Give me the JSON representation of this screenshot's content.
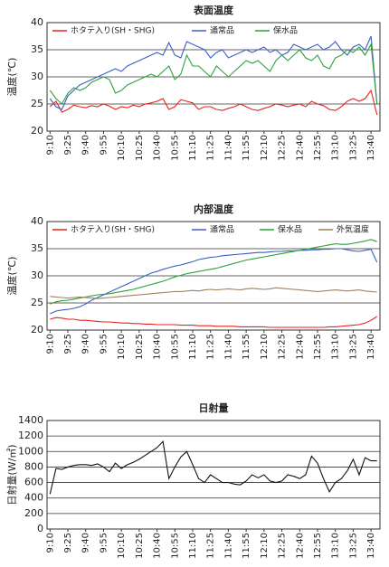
{
  "chart_data": [
    {
      "type": "line",
      "title": "表面温度",
      "ylabel": "温度(℃)",
      "ylim": [
        20,
        40
      ],
      "yticks": [
        20,
        25,
        30,
        35,
        40
      ],
      "grid": true,
      "legend": "top",
      "categories": [
        "9:10",
        null,
        null,
        "9:25",
        null,
        null,
        "9:40",
        null,
        null,
        "9:55",
        null,
        null,
        "10:10",
        null,
        null,
        "10:25",
        null,
        null,
        "10:40",
        null,
        null,
        "10:55",
        null,
        null,
        "11:10",
        null,
        null,
        "11:25",
        null,
        null,
        "11:40",
        null,
        null,
        "11:55",
        null,
        null,
        "12:10",
        null,
        null,
        "12:25",
        null,
        null,
        "12:40",
        null,
        null,
        "12:55",
        null,
        null,
        "13:10",
        null,
        null,
        "13:25",
        null,
        null,
        "13:40",
        null
      ],
      "series": [
        {
          "name": "ホタテ入り(SH・SHG)",
          "color": "#e8231e",
          "values": [
            24.5,
            25.5,
            23.5,
            24,
            24.8,
            24.5,
            24.3,
            24.7,
            24.5,
            25,
            24.6,
            24,
            24.5,
            24.3,
            24.8,
            24.5,
            25,
            25.2,
            25.5,
            26,
            24,
            24.5,
            25.8,
            25.5,
            25.2,
            24,
            24.5,
            24.5,
            24,
            23.8,
            24.2,
            24.5,
            25,
            24.5,
            24,
            23.8,
            24.2,
            24.5,
            25,
            24.8,
            24.5,
            24.8,
            25,
            24.5,
            25.5,
            25,
            24.7,
            24,
            23.8,
            24.5,
            25.5,
            26,
            25.5,
            26,
            27.5,
            23
          ]
        },
        {
          "name": "通常品",
          "color": "#3b5fc8",
          "values": [
            26,
            24.5,
            24,
            26.5,
            27.5,
            28.5,
            29,
            29.5,
            30,
            30.5,
            31,
            31.5,
            31,
            32,
            32.5,
            33,
            33.5,
            34,
            34.5,
            34,
            36.3,
            34,
            33.5,
            36.5,
            36,
            35.5,
            35,
            33.5,
            34.5,
            35,
            33.5,
            34,
            34.5,
            35,
            34.5,
            35,
            35.5,
            34.5,
            35,
            34,
            34.5,
            36,
            35.5,
            35,
            35.5,
            36,
            35,
            35.5,
            36.5,
            35,
            34,
            35.5,
            36,
            35,
            37.5,
            25
          ]
        },
        {
          "name": "保水品",
          "color": "#2aa33a",
          "values": [
            27.5,
            26,
            25,
            27,
            28,
            27.5,
            28,
            29,
            29.5,
            30,
            29.5,
            27,
            27.5,
            28.5,
            29,
            29.5,
            30,
            30.5,
            30,
            31,
            32,
            29.5,
            30.5,
            34,
            32,
            32,
            31,
            30,
            32,
            31,
            30,
            31,
            32,
            33,
            32.5,
            33,
            32,
            31,
            33,
            34,
            33,
            34,
            35,
            33.5,
            33,
            34,
            32,
            31.5,
            33.5,
            34,
            35,
            34.5,
            35.5,
            34,
            36,
            25
          ]
        }
      ]
    },
    {
      "type": "line",
      "title": "内部温度",
      "ylabel": "温度(℃)",
      "ylim": [
        20,
        40
      ],
      "yticks": [
        20,
        25,
        30,
        35,
        40
      ],
      "grid": true,
      "legend": "top",
      "categories": [
        "9:10",
        null,
        null,
        "9:25",
        null,
        null,
        "9:40",
        null,
        null,
        "9:55",
        null,
        null,
        "10:10",
        null,
        null,
        "10:25",
        null,
        null,
        "10:40",
        null,
        null,
        "10:55",
        null,
        null,
        "11:10",
        null,
        null,
        "11:25",
        null,
        null,
        "11:40",
        null,
        null,
        "11:55",
        null,
        null,
        "12:10",
        null,
        null,
        "12:25",
        null,
        null,
        "12:40",
        null,
        null,
        "12:55",
        null,
        null,
        "13:10",
        null,
        null,
        "13:25",
        null,
        null,
        "13:40",
        null
      ],
      "series": [
        {
          "name": "ホタテ入り(SH・SHG)",
          "color": "#e8231e",
          "values": [
            22,
            22.3,
            22.2,
            22,
            22,
            21.8,
            21.8,
            21.7,
            21.6,
            21.5,
            21.5,
            21.4,
            21.3,
            21.3,
            21.2,
            21.2,
            21.1,
            21.1,
            21,
            21,
            21,
            21,
            20.9,
            20.9,
            20.9,
            20.8,
            20.8,
            20.8,
            20.7,
            20.7,
            20.7,
            20.7,
            20.6,
            20.6,
            20.6,
            20.6,
            20.6,
            20.5,
            20.5,
            20.5,
            20.5,
            20.5,
            20.5,
            20.5,
            20.5,
            20.5,
            20.5,
            20.6,
            20.6,
            20.7,
            20.8,
            20.9,
            21,
            21.3,
            21.8,
            22.5
          ]
        },
        {
          "name": "通常品",
          "color": "#3b5fc8",
          "values": [
            23,
            23.5,
            23.7,
            23.8,
            24,
            24.3,
            24.8,
            25.5,
            26,
            26.5,
            27,
            27.5,
            28,
            28.5,
            29,
            29.5,
            30,
            30.5,
            30.8,
            31.2,
            31.5,
            31.8,
            32,
            32.3,
            32.6,
            33,
            33.2,
            33.4,
            33.5,
            33.7,
            33.8,
            33.9,
            34,
            34.1,
            34.2,
            34.3,
            34.3,
            34.4,
            34.5,
            34.5,
            34.6,
            34.6,
            34.7,
            34.7,
            34.8,
            34.8,
            34.9,
            34.9,
            35,
            35,
            34.8,
            34.6,
            34.5,
            34.7,
            34.9,
            32.5
          ]
        },
        {
          "name": "保水品",
          "color": "#2aa33a",
          "values": [
            24.8,
            25.2,
            25.4,
            25.5,
            25.7,
            25.9,
            26.1,
            26.3,
            26.5,
            26.6,
            26.7,
            26.9,
            27.1,
            27.3,
            27.5,
            27.8,
            28.1,
            28.4,
            28.7,
            29,
            29.4,
            29.8,
            30.1,
            30.4,
            30.6,
            30.8,
            31,
            31.2,
            31.4,
            31.7,
            32,
            32.3,
            32.6,
            32.9,
            33.1,
            33.3,
            33.5,
            33.7,
            33.9,
            34.1,
            34.3,
            34.5,
            34.7,
            34.9,
            35.1,
            35.3,
            35.5,
            35.7,
            35.9,
            35.8,
            35.8,
            36,
            36.2,
            36.4,
            36.7,
            36.3
          ]
        },
        {
          "name": "外気温度",
          "color": "#a0805e",
          "values": [
            26.2,
            26.1,
            26,
            25.9,
            26,
            26.1,
            26,
            25.9,
            25.8,
            25.9,
            26,
            26.1,
            26.2,
            26.3,
            26.4,
            26.5,
            26.6,
            26.7,
            26.8,
            26.9,
            27,
            27.1,
            27.1,
            27.2,
            27.3,
            27.2,
            27.4,
            27.5,
            27.4,
            27.5,
            27.6,
            27.5,
            27.4,
            27.6,
            27.7,
            27.6,
            27.5,
            27.6,
            27.8,
            27.7,
            27.6,
            27.5,
            27.4,
            27.3,
            27.2,
            27.1,
            27.2,
            27.3,
            27.4,
            27.3,
            27.2,
            27.3,
            27.4,
            27.2,
            27.1,
            27
          ]
        }
      ]
    },
    {
      "type": "line",
      "title": "日射量",
      "ylabel": "日射量(W/㎡)",
      "ylim": [
        0,
        1400
      ],
      "yticks": [
        0,
        200,
        400,
        600,
        800,
        1000,
        1200,
        1400
      ],
      "grid": true,
      "categories": [
        "9:10",
        null,
        null,
        "9:25",
        null,
        null,
        "9:40",
        null,
        null,
        "9:55",
        null,
        null,
        "10:10",
        null,
        null,
        "10:25",
        null,
        null,
        "10:40",
        null,
        null,
        "10:55",
        null,
        null,
        "11:10",
        null,
        null,
        "11:25",
        null,
        null,
        "11:40",
        null,
        null,
        "11:55",
        null,
        null,
        "12:10",
        null,
        null,
        "12:25",
        null,
        null,
        "12:40",
        null,
        null,
        "12:55",
        null,
        null,
        "13:10",
        null,
        null,
        "13:25",
        null,
        null,
        "13:40",
        null
      ],
      "series": [
        {
          "color": "#111111",
          "values": [
            450,
            780,
            770,
            800,
            820,
            830,
            830,
            820,
            840,
            800,
            740,
            850,
            780,
            830,
            860,
            900,
            950,
            1000,
            1050,
            1130,
            650,
            800,
            930,
            1000,
            830,
            650,
            600,
            700,
            650,
            600,
            600,
            580,
            570,
            620,
            700,
            660,
            700,
            620,
            600,
            620,
            700,
            680,
            650,
            700,
            940,
            850,
            650,
            480,
            600,
            650,
            750,
            900,
            700,
            920,
            880,
            880
          ]
        }
      ]
    }
  ]
}
